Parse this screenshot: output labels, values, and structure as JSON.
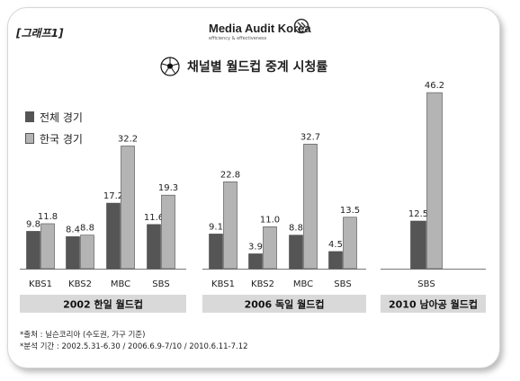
{
  "header": {
    "tag": "[그래프1]",
    "logo_text": "Media Audit Korea",
    "logo_tagline": "efficiency & effectiveness",
    "title": "채널별 월드컵 중계 시청률"
  },
  "legend": {
    "items": [
      {
        "label": "전체 경기",
        "color": "#555555"
      },
      {
        "label": "한국 경기",
        "color": "#b4b4b4"
      }
    ]
  },
  "footer": {
    "source": "*출처 : 닐슨코리아 (수도권, 가구 기준)",
    "period": "*분석 기간 : 2002.5.31-6.30 / 2006.6.9-7/10 / 2010.6.11-7.12"
  },
  "chart_data": [
    {
      "type": "bar",
      "title": "2002 한일 월드컵",
      "categories": [
        "KBS1",
        "KBS2",
        "MBC",
        "SBS"
      ],
      "series": [
        {
          "name": "전체 경기",
          "values": [
            9.8,
            8.4,
            17.2,
            11.6
          ]
        },
        {
          "name": "한국 경기",
          "values": [
            11.8,
            8.8,
            32.2,
            19.3
          ]
        }
      ]
    },
    {
      "type": "bar",
      "title": "2006 독일 월드컵",
      "categories": [
        "KBS1",
        "KBS2",
        "MBC",
        "SBS"
      ],
      "series": [
        {
          "name": "전체 경기",
          "values": [
            9.1,
            3.9,
            8.8,
            4.5
          ]
        },
        {
          "name": "한국 경기",
          "values": [
            22.8,
            11.0,
            32.7,
            13.5
          ]
        }
      ]
    },
    {
      "type": "bar",
      "title": "2010 남아공 월드컵",
      "categories": [
        "SBS"
      ],
      "series": [
        {
          "name": "전체 경기",
          "values": [
            12.5
          ]
        },
        {
          "name": "한국 경기",
          "values": [
            46.2
          ]
        }
      ]
    }
  ]
}
